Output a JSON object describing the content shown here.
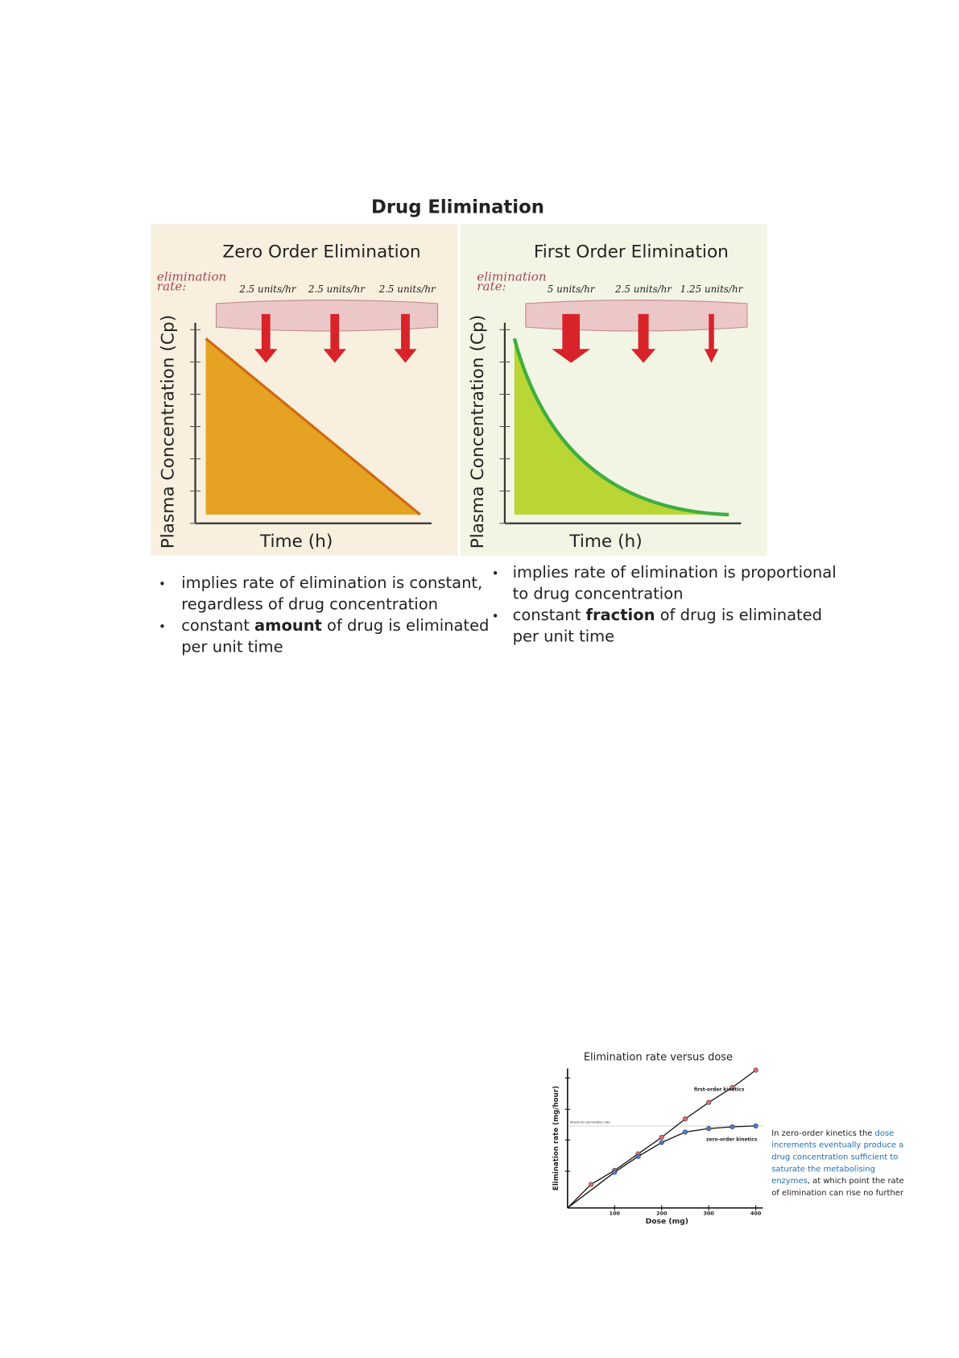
{
  "title": "Drug Elimination",
  "panels": [
    {
      "title": "Zero Order Elimination",
      "rate_label": [
        "elimination",
        "rate:"
      ],
      "rates": [
        "2.5 units/hr",
        "2.5 units/hr",
        "2.5 units/hr"
      ],
      "y_label": "Plasma Concentration (Cp)",
      "x_label": "Time (h)",
      "bullets": [
        [
          [
            "implies rate of elimination is constant,"
          ],
          [
            "regardless of drug concentration"
          ]
        ],
        [
          [
            "constant ",
            {
              "text": "amount",
              "bold": true
            },
            " of drug is eliminated"
          ],
          [
            "per unit time"
          ]
        ]
      ]
    },
    {
      "title": "First Order Elimination",
      "rate_label": [
        "elimination",
        "rate:"
      ],
      "rates": [
        "5 units/hr",
        "2.5 units/hr",
        "1.25 units/hr"
      ],
      "y_label": "Plasma Concentration (Cp)",
      "x_label": "Time (h)",
      "bullets": [
        [
          [
            "implies rate of elimination is proportional"
          ],
          [
            "to drug concentration"
          ]
        ],
        [
          [
            "constant ",
            {
              "text": "fraction",
              "bold": true
            },
            " of drug is eliminated"
          ],
          [
            "per unit time"
          ]
        ]
      ]
    }
  ],
  "dose_chart": {
    "type": "line",
    "title": "Elimination rate versus dose",
    "x_label": "Dose (mg)",
    "y_label": "Elimination rate (mg/hour)",
    "xlim": [
      0,
      415
    ],
    "ylim": [
      0,
      170
    ],
    "xticks": [
      100,
      200,
      300,
      400
    ],
    "max_rate": 94,
    "max_label": "Maximum elimination rate",
    "series": [
      {
        "name": "first-order kinetics",
        "color": "#e06a6a",
        "x": [
          50,
          100,
          150,
          200,
          250,
          300,
          350,
          400
        ],
        "values": [
          27,
          43,
          62,
          81,
          102,
          121,
          138,
          158
        ]
      },
      {
        "name": "zero-order kinetics",
        "color": "#4a7fd0",
        "x": [
          100,
          150,
          200,
          250,
          300,
          350,
          400
        ],
        "values": [
          41,
          59,
          75,
          87,
          91,
          93,
          94
        ]
      }
    ],
    "caption": [
      [
        {
          "text": "In zero-order kinetics the ",
          "color": "#222222"
        },
        {
          "text": "dose",
          "color": "#1f6fb5"
        }
      ],
      [
        {
          "text": "increments eventually produce a",
          "color": "#1f6fb5"
        }
      ],
      [
        {
          "text": "drug concentration sufficient to",
          "color": "#1f6fb5"
        }
      ],
      [
        {
          "text": "saturate the metabolising",
          "color": "#1f6fb5"
        }
      ],
      [
        {
          "text": "enzymes",
          "color": "#1f6fb5"
        },
        {
          "text": ", at which point the rate",
          "color": "#222222"
        }
      ],
      [
        {
          "text": "of elimination can rise no further",
          "color": "#222222"
        }
      ]
    ]
  }
}
